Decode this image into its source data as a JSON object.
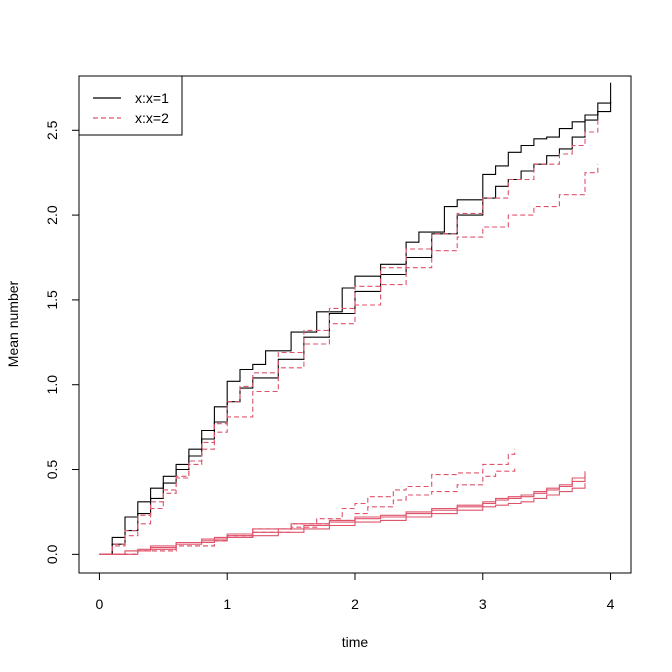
{
  "chart_data": {
    "type": "line",
    "title": "",
    "xlabel": "time",
    "ylabel": "Mean number",
    "xlim": [
      -0.16,
      4.16
    ],
    "ylim": [
      -0.11,
      2.82
    ],
    "x_ticks": [
      "0",
      "1",
      "2",
      "3",
      "4"
    ],
    "y_ticks": [
      "0.0",
      "0.5",
      "1.0",
      "1.5",
      "2.0",
      "2.5"
    ],
    "grid": false,
    "legend": {
      "position": "top-left",
      "entries": [
        {
          "label": "x:x=1",
          "color": "#000000",
          "dash": "solid"
        },
        {
          "label": "x:x=2",
          "color": "#DF536B",
          "dash": "dashed"
        }
      ]
    },
    "series": [
      {
        "name": "x:x=1",
        "color": "#000000",
        "dash": "solid",
        "x": [
          0,
          0.1,
          0.2,
          0.3,
          0.4,
          0.5,
          0.6,
          0.7,
          0.8,
          0.9,
          1.0,
          1.1,
          1.2,
          1.3,
          1.5,
          1.7,
          1.9,
          2.0,
          2.2,
          2.4,
          2.5,
          2.7,
          2.8,
          3.0,
          3.1,
          3.2,
          3.3,
          3.4,
          3.5,
          3.6,
          3.7,
          3.8,
          3.9,
          4.0
        ],
        "y": [
          0.0,
          0.1,
          0.22,
          0.31,
          0.39,
          0.46,
          0.53,
          0.62,
          0.73,
          0.87,
          1.02,
          1.09,
          1.12,
          1.2,
          1.31,
          1.43,
          1.57,
          1.64,
          1.71,
          1.84,
          1.9,
          2.05,
          2.09,
          2.24,
          2.29,
          2.37,
          2.41,
          2.45,
          2.46,
          2.51,
          2.55,
          2.59,
          2.66,
          2.78
        ]
      },
      {
        "name": "x:x=1",
        "color": "#000000",
        "dash": "solid",
        "x": [
          0,
          0.1,
          0.2,
          0.3,
          0.4,
          0.5,
          0.6,
          0.7,
          0.8,
          0.9,
          1.0,
          1.1,
          1.2,
          1.4,
          1.6,
          1.8,
          2.0,
          2.2,
          2.4,
          2.6,
          2.8,
          3.0,
          3.1,
          3.2,
          3.3,
          3.4,
          3.5,
          3.6,
          3.7,
          3.8,
          3.9,
          4.0
        ],
        "y": [
          0.0,
          0.06,
          0.14,
          0.24,
          0.33,
          0.42,
          0.5,
          0.58,
          0.68,
          0.78,
          0.9,
          0.98,
          1.04,
          1.15,
          1.28,
          1.42,
          1.55,
          1.65,
          1.75,
          1.89,
          2.0,
          2.1,
          2.17,
          2.21,
          2.26,
          2.3,
          2.35,
          2.39,
          2.46,
          2.56,
          2.61,
          2.67
        ]
      },
      {
        "name": "x:x=2",
        "color": "#DF536B",
        "dash": "dashed",
        "x": [
          0,
          0.1,
          0.2,
          0.3,
          0.4,
          0.5,
          0.6,
          0.7,
          0.8,
          0.9,
          1.0,
          1.1,
          1.2,
          1.4,
          1.6,
          1.8,
          2.0,
          2.2,
          2.4,
          2.6,
          2.8,
          3.0,
          3.2,
          3.4,
          3.6,
          3.7,
          3.8,
          3.9
        ],
        "y": [
          0.0,
          0.06,
          0.14,
          0.23,
          0.31,
          0.38,
          0.46,
          0.55,
          0.66,
          0.77,
          0.9,
          0.99,
          1.07,
          1.19,
          1.32,
          1.45,
          1.58,
          1.69,
          1.8,
          1.89,
          2.01,
          2.1,
          2.21,
          2.3,
          2.36,
          2.41,
          2.49,
          2.57
        ]
      },
      {
        "name": "x:x=2",
        "color": "#DF536B",
        "dash": "dashed",
        "x": [
          0,
          0.1,
          0.2,
          0.3,
          0.4,
          0.5,
          0.6,
          0.7,
          0.8,
          0.9,
          1.0,
          1.2,
          1.4,
          1.6,
          1.8,
          2.0,
          2.2,
          2.4,
          2.6,
          2.8,
          3.0,
          3.2,
          3.4,
          3.6,
          3.8,
          3.9
        ],
        "y": [
          0.0,
          0.05,
          0.11,
          0.18,
          0.27,
          0.36,
          0.45,
          0.53,
          0.62,
          0.72,
          0.81,
          0.96,
          1.1,
          1.24,
          1.36,
          1.47,
          1.59,
          1.69,
          1.79,
          1.87,
          1.93,
          2.0,
          2.05,
          2.12,
          2.25,
          2.3
        ]
      },
      {
        "name": "x:x=2",
        "color": "#DF536B",
        "dash": "dashed",
        "x": [
          0,
          0.3,
          0.6,
          0.9,
          1.0,
          1.2,
          1.5,
          1.7,
          1.9,
          2.0,
          2.1,
          2.3,
          2.4,
          2.6,
          2.8,
          3.0,
          3.2,
          3.25
        ],
        "y": [
          0.0,
          0.02,
          0.05,
          0.08,
          0.11,
          0.15,
          0.18,
          0.21,
          0.27,
          0.3,
          0.34,
          0.38,
          0.4,
          0.47,
          0.48,
          0.53,
          0.59,
          0.62
        ]
      },
      {
        "name": "x:x=2",
        "color": "#DF536B",
        "dash": "dashed",
        "x": [
          0,
          0.3,
          0.6,
          0.9,
          1.0,
          1.2,
          1.5,
          1.7,
          1.8,
          2.0,
          2.1,
          2.3,
          2.4,
          2.6,
          2.8,
          3.0,
          3.1,
          3.25
        ],
        "y": [
          0.0,
          0.02,
          0.05,
          0.08,
          0.1,
          0.13,
          0.16,
          0.18,
          0.2,
          0.24,
          0.28,
          0.32,
          0.35,
          0.37,
          0.41,
          0.46,
          0.49,
          0.51
        ]
      },
      {
        "name": "x:x=2",
        "color": "#DF536B",
        "dash": "solid",
        "x": [
          0,
          0.2,
          0.4,
          0.6,
          0.8,
          1.0,
          1.2,
          1.4,
          1.6,
          1.8,
          2.0,
          2.2,
          2.4,
          2.6,
          2.8,
          3.0,
          3.1,
          3.2,
          3.3,
          3.4,
          3.5,
          3.6,
          3.7,
          3.8
        ],
        "y": [
          0.0,
          0.02,
          0.05,
          0.07,
          0.09,
          0.11,
          0.13,
          0.15,
          0.17,
          0.19,
          0.21,
          0.22,
          0.24,
          0.26,
          0.28,
          0.3,
          0.32,
          0.33,
          0.34,
          0.36,
          0.38,
          0.4,
          0.45,
          0.49
        ]
      },
      {
        "name": "x:x=2",
        "color": "#DF536B",
        "dash": "solid",
        "x": [
          0,
          0.3,
          0.6,
          0.9,
          1.0,
          1.2,
          1.5,
          1.8,
          2.0,
          2.2,
          2.4,
          2.6,
          2.8,
          3.0,
          3.1,
          3.2,
          3.3,
          3.4,
          3.5,
          3.6,
          3.7,
          3.8
        ],
        "y": [
          0.0,
          0.03,
          0.07,
          0.1,
          0.12,
          0.15,
          0.18,
          0.2,
          0.22,
          0.23,
          0.25,
          0.27,
          0.29,
          0.31,
          0.33,
          0.34,
          0.35,
          0.37,
          0.39,
          0.41,
          0.43,
          0.47
        ]
      },
      {
        "name": "x:x=2",
        "color": "#DF536B",
        "dash": "solid",
        "x": [
          0,
          0.2,
          0.4,
          0.6,
          0.8,
          1.0,
          1.2,
          1.4,
          1.6,
          1.8,
          2.0,
          2.2,
          2.4,
          2.6,
          2.8,
          3.0,
          3.1,
          3.2,
          3.3,
          3.4,
          3.5,
          3.6,
          3.7,
          3.8
        ],
        "y": [
          0.0,
          0.02,
          0.04,
          0.06,
          0.08,
          0.1,
          0.11,
          0.13,
          0.15,
          0.17,
          0.19,
          0.2,
          0.22,
          0.24,
          0.26,
          0.28,
          0.29,
          0.3,
          0.31,
          0.33,
          0.35,
          0.37,
          0.39,
          0.42
        ]
      }
    ]
  }
}
